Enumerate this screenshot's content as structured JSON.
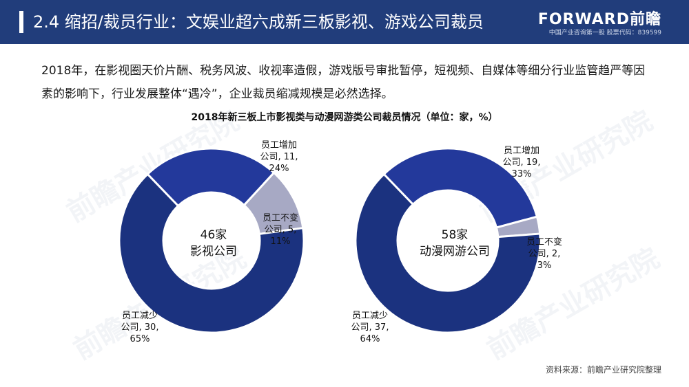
{
  "header": {
    "title": "2.4 缩招/裁员行业：文娱业超六成新三板影视、游戏公司裁员",
    "logo_main": "FORWARD前瞻",
    "logo_sub": "中国产业咨询第一股 股票代码：839599"
  },
  "paragraph": "2018年，在影视圈天价片酬、税务风波、收视率造假，游戏版号审批暂停，短视频、自媒体等细分行业监管趋严等因素的影响下，行业发展整体“遇冷”，企业裁员缩减规模是必然选择。",
  "watermark_text": "前瞻产业研究院",
  "source": "资料来源：前瞻产业研究院整理",
  "colors": {
    "header_bg": "#213d7b",
    "increase": "#23399b",
    "unchanged": "#a7a9c4",
    "decrease": "#1b327f"
  },
  "chart_data": {
    "type": "pie",
    "title": "2018年新三板上市影视类与动漫网游类公司裁员情况（单位：家，%）",
    "donut": true,
    "charts": [
      {
        "center_label_line1": "46家",
        "center_label_line2": "影视公司",
        "slices": [
          {
            "name": "员工增加",
            "count": 11,
            "percent": 24,
            "label_lines": [
              "员工增加",
              "公司, 11,",
              "24%"
            ]
          },
          {
            "name": "员工不变",
            "count": 5,
            "percent": 11,
            "label_lines": [
              "员工不变",
              "公司, 5,",
              "11%"
            ]
          },
          {
            "name": "员工减少",
            "count": 30,
            "percent": 65,
            "label_lines": [
              "员工减少",
              "公司, 30,",
              "65%"
            ]
          }
        ]
      },
      {
        "center_label_line1": "58家",
        "center_label_line2": "动漫网游公司",
        "slices": [
          {
            "name": "员工增加",
            "count": 19,
            "percent": 33,
            "label_lines": [
              "员工增加",
              "公司, 19,",
              "33%"
            ]
          },
          {
            "name": "员工不变",
            "count": 2,
            "percent": 3,
            "label_lines": [
              "员工不变",
              "公司, 2,",
              "3%"
            ]
          },
          {
            "name": "员工减少",
            "count": 37,
            "percent": 64,
            "label_lines": [
              "员工减少",
              "公司, 37,",
              "64%"
            ]
          }
        ]
      }
    ]
  }
}
